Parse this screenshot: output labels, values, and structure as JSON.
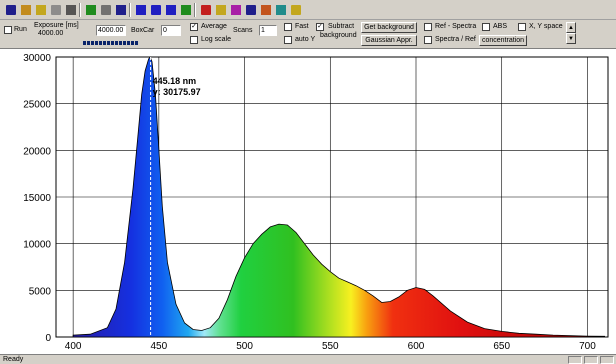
{
  "toolbar_icons": [
    "save-icon",
    "open-folder-icon",
    "open-file-icon",
    "copy-icon",
    "print-icon",
    "reference-icon",
    "tools-icon",
    "export-icon",
    "zoom-horizontal-icon",
    "zoom-vertical-icon",
    "zoom-both-icon",
    "peak-icon",
    "spectrum-color-icon",
    "lamp-icon",
    "graph-icon",
    "camera-icon",
    "palette-icon",
    "network-icon",
    "help-icon"
  ],
  "controls": {
    "run_label": "Run",
    "exposure_label_line1": "Exposure [ms]",
    "exposure_label_line2": "4000.00",
    "exposure_value": "4000.00",
    "boxcar_label": "BoxCar",
    "boxcar_value": "0",
    "average_label": "Average",
    "scans_label": "Scans",
    "scans_value": "1",
    "fast_label": "Fast",
    "subtract_label_line1": "Subtract",
    "subtract_label_line2": "background",
    "get_background_label": "Get background",
    "log_scale_label": "Log scale",
    "auto_y_label": "auto Y",
    "gaussian_label": "Gaussian Appr.",
    "ref_spectra_label": "Ref - Spectra",
    "abs_label": "ABS",
    "xy_space_label": "X, Y space",
    "spectra_ref_label": "Spectra / Ref",
    "concentration_label": "concentration",
    "average_checked": true,
    "subtract_checked": true
  },
  "cursor": {
    "x_text": "445.18 nm",
    "y_text": "y: 30175.97",
    "x": 445.18,
    "y": 30175.97
  },
  "status": {
    "text": "Ready"
  },
  "chart_data": {
    "type": "area",
    "title": "",
    "xlabel": "",
    "ylabel": "",
    "xlim": [
      390,
      712
    ],
    "ylim": [
      0,
      30000
    ],
    "x_ticks": [
      400,
      450,
      500,
      550,
      600,
      650,
      700
    ],
    "y_ticks": [
      0,
      5000,
      10000,
      15000,
      20000,
      25000,
      30000
    ],
    "grid": true,
    "fill": "wavelength-spectrum-gradient",
    "series": [
      {
        "x": [
          400,
          410,
          420,
          425,
          430,
          435,
          438,
          440,
          442,
          444,
          445,
          446,
          448,
          450,
          452,
          455,
          460,
          465,
          470,
          475,
          480,
          485,
          490,
          495,
          500,
          505,
          510,
          515,
          520,
          525,
          530,
          535,
          540,
          545,
          550,
          555,
          560,
          565,
          570,
          575,
          580,
          585,
          590,
          595,
          600,
          605,
          610,
          615,
          620,
          630,
          640,
          650,
          660,
          670,
          680,
          690,
          700,
          710
        ],
        "y": [
          200,
          300,
          1000,
          3000,
          8000,
          16000,
          22000,
          26000,
          28500,
          29800,
          30000,
          29500,
          26000,
          20000,
          14000,
          8000,
          3500,
          1500,
          800,
          700,
          1000,
          2000,
          4000,
          6500,
          8500,
          10000,
          11000,
          11800,
          12100,
          12000,
          11200,
          10000,
          8800,
          7800,
          7000,
          6300,
          5900,
          5500,
          5000,
          4400,
          3700,
          3800,
          4300,
          5000,
          5300,
          5100,
          4400,
          3600,
          2800,
          1600,
          900,
          600,
          400,
          300,
          200,
          150,
          100,
          80
        ]
      }
    ]
  }
}
